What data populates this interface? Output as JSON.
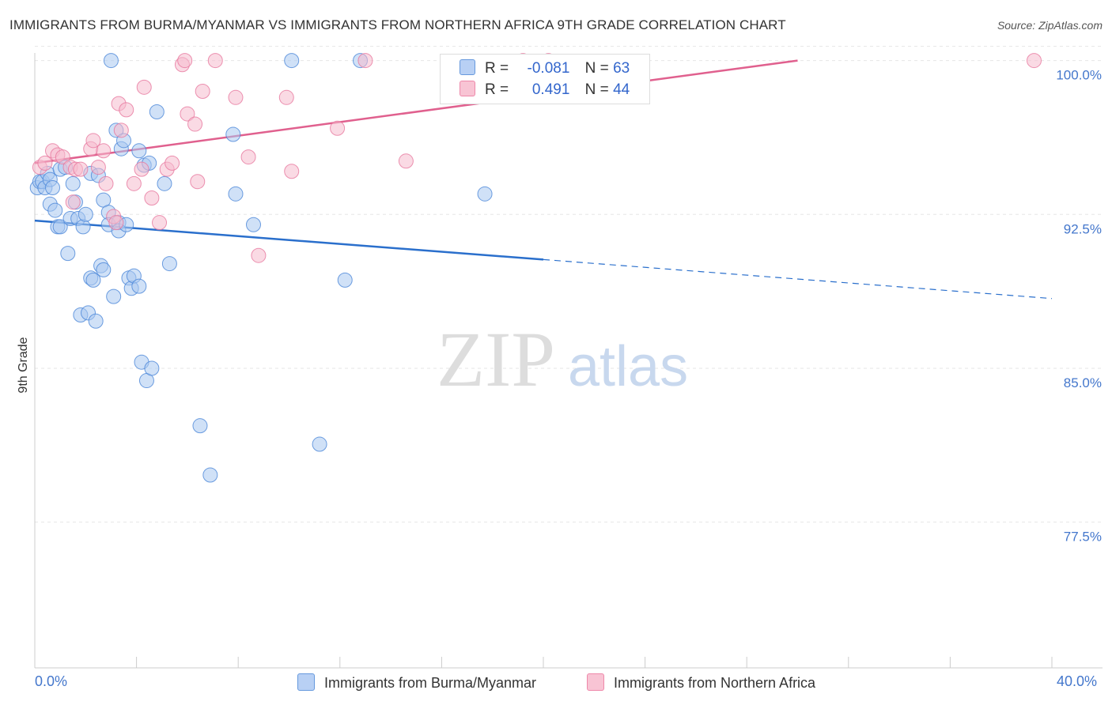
{
  "title": "IMMIGRANTS FROM BURMA/MYANMAR VS IMMIGRANTS FROM NORTHERN AFRICA 9TH GRADE CORRELATION CHART",
  "source": "Source: ZipAtlas.com",
  "watermark": {
    "zip": "ZIP",
    "atlas": "atlas"
  },
  "legend": {
    "r_label": "R =",
    "n_label": "N =",
    "rows": [
      {
        "r": "-0.081",
        "n": "63",
        "color": "#6699dd",
        "fill": "#b8d0f4"
      },
      {
        "r": "0.491",
        "n": "44",
        "color": "#ee88aa",
        "fill": "#f8c4d4"
      }
    ]
  },
  "bottom_legend": {
    "series1": "Immigrants from Burma/Myanmar",
    "series2": "Immigrants from Northern Africa"
  },
  "x_axis": {
    "min_label": "0.0%",
    "max_label": "40.0%"
  },
  "chart_data": {
    "type": "scatter",
    "title": "IMMIGRANTS FROM BURMA/MYANMAR VS IMMIGRANTS FROM NORTHERN AFRICA 9TH GRADE CORRELATION CHART",
    "xlabel": "",
    "ylabel": "9th Grade",
    "xlim": [
      0,
      40
    ],
    "ylim": [
      70.4,
      100.6
    ],
    "y_ticks": [
      77.5,
      85.0,
      92.5,
      100.0
    ],
    "y_tick_labels": [
      "77.5%",
      "85.0%",
      "92.5%",
      "100.0%"
    ],
    "series": [
      {
        "name": "Immigrants from Burma/Myanmar",
        "color": "#4a86d8",
        "fill": "#aac8f0",
        "points": [
          [
            0.1,
            93.8
          ],
          [
            0.2,
            94.1
          ],
          [
            0.3,
            94.1
          ],
          [
            0.4,
            93.8
          ],
          [
            0.5,
            94.5
          ],
          [
            0.6,
            94.2
          ],
          [
            0.6,
            93.0
          ],
          [
            0.7,
            93.8
          ],
          [
            0.8,
            92.7
          ],
          [
            0.9,
            91.9
          ],
          [
            1.0,
            94.7
          ],
          [
            1.0,
            91.9
          ],
          [
            1.2,
            94.8
          ],
          [
            1.3,
            90.6
          ],
          [
            1.4,
            92.3
          ],
          [
            1.5,
            94.0
          ],
          [
            1.6,
            93.1
          ],
          [
            1.7,
            92.3
          ],
          [
            1.8,
            87.6
          ],
          [
            1.9,
            91.9
          ],
          [
            2.0,
            92.5
          ],
          [
            2.1,
            87.7
          ],
          [
            2.2,
            94.5
          ],
          [
            2.2,
            89.4
          ],
          [
            2.3,
            89.3
          ],
          [
            2.4,
            87.3
          ],
          [
            2.5,
            94.4
          ],
          [
            2.6,
            90.0
          ],
          [
            2.7,
            93.2
          ],
          [
            2.7,
            89.8
          ],
          [
            2.9,
            92.6
          ],
          [
            2.9,
            92.0
          ],
          [
            3.0,
            100.0
          ],
          [
            3.1,
            88.5
          ],
          [
            3.2,
            96.6
          ],
          [
            3.3,
            92.1
          ],
          [
            3.3,
            91.7
          ],
          [
            3.4,
            95.7
          ],
          [
            3.5,
            96.1
          ],
          [
            3.6,
            92.0
          ],
          [
            3.7,
            89.4
          ],
          [
            3.8,
            88.9
          ],
          [
            3.9,
            89.5
          ],
          [
            4.1,
            89.0
          ],
          [
            4.1,
            95.6
          ],
          [
            4.2,
            85.3
          ],
          [
            4.3,
            94.9
          ],
          [
            4.4,
            84.4
          ],
          [
            4.5,
            95.0
          ],
          [
            4.6,
            85.0
          ],
          [
            4.8,
            97.5
          ],
          [
            5.1,
            94.0
          ],
          [
            5.3,
            90.1
          ],
          [
            6.5,
            82.2
          ],
          [
            6.9,
            79.8
          ],
          [
            7.8,
            96.4
          ],
          [
            7.9,
            93.5
          ],
          [
            8.6,
            92.0
          ],
          [
            10.1,
            100.0
          ],
          [
            11.2,
            81.3
          ],
          [
            12.2,
            89.3
          ],
          [
            12.8,
            100.0
          ],
          [
            17.7,
            93.5
          ]
        ]
      },
      {
        "name": "Immigrants from Northern Africa",
        "color": "#e7779e",
        "fill": "#f6bccd",
        "points": [
          [
            0.2,
            94.8
          ],
          [
            0.4,
            95.0
          ],
          [
            0.7,
            95.6
          ],
          [
            0.9,
            95.4
          ],
          [
            1.1,
            95.3
          ],
          [
            1.4,
            94.8
          ],
          [
            1.5,
            93.1
          ],
          [
            1.6,
            94.7
          ],
          [
            1.8,
            94.7
          ],
          [
            2.2,
            95.7
          ],
          [
            2.3,
            96.1
          ],
          [
            2.5,
            94.8
          ],
          [
            2.7,
            95.6
          ],
          [
            2.8,
            94.0
          ],
          [
            3.1,
            92.4
          ],
          [
            3.2,
            92.1
          ],
          [
            3.3,
            97.9
          ],
          [
            3.4,
            96.6
          ],
          [
            3.6,
            97.6
          ],
          [
            3.9,
            94.0
          ],
          [
            4.2,
            94.7
          ],
          [
            4.3,
            98.7
          ],
          [
            4.6,
            93.3
          ],
          [
            4.9,
            92.1
          ],
          [
            5.2,
            94.7
          ],
          [
            5.4,
            95.0
          ],
          [
            5.8,
            99.8
          ],
          [
            5.9,
            100.0
          ],
          [
            6.0,
            97.4
          ],
          [
            6.3,
            96.9
          ],
          [
            6.4,
            94.1
          ],
          [
            6.6,
            98.5
          ],
          [
            7.1,
            100.0
          ],
          [
            7.9,
            98.2
          ],
          [
            8.4,
            95.3
          ],
          [
            8.8,
            90.5
          ],
          [
            9.9,
            98.2
          ],
          [
            10.1,
            94.6
          ],
          [
            11.9,
            96.7
          ],
          [
            13.0,
            100.0
          ],
          [
            14.6,
            95.1
          ],
          [
            19.2,
            100.0
          ],
          [
            20.2,
            100.0
          ],
          [
            39.3,
            100.0
          ]
        ]
      }
    ],
    "trendlines": [
      {
        "series": "Immigrants from Burma/Myanmar",
        "solid_from": [
          0,
          92.2
        ],
        "solid_to": [
          20,
          90.3
        ],
        "dashed_to": [
          40,
          88.4
        ]
      },
      {
        "series": "Immigrants from Northern Africa",
        "from": [
          0,
          95.0
        ],
        "to": [
          30,
          100.0
        ]
      }
    ],
    "grid": true,
    "legend_position": "top-center"
  }
}
